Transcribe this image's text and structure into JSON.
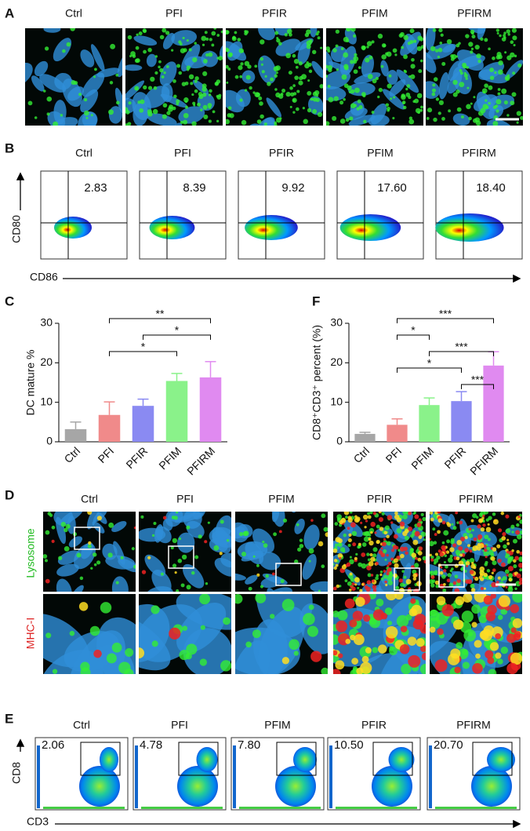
{
  "panel_a": {
    "label": "A",
    "titles": [
      "Ctrl",
      "PFI",
      "PFIR",
      "PFIM",
      "PFIRM"
    ]
  },
  "panel_b": {
    "label": "B",
    "titles": [
      "Ctrl",
      "PFI",
      "PFIR",
      "PFIM",
      "PFIRM"
    ],
    "percentages": [
      "2.83",
      "8.39",
      "9.92",
      "17.60",
      "18.40"
    ],
    "y_axis": "CD80",
    "x_axis": "CD86"
  },
  "chart_data": [
    {
      "type": "bar",
      "label": "C",
      "ylabel": "DC mature %",
      "categories": [
        "Ctrl",
        "PFI",
        "PFIR",
        "PFIM",
        "PFIRM"
      ],
      "values": [
        3.2,
        6.8,
        9.1,
        15.4,
        16.3
      ],
      "errors": [
        1.8,
        3.3,
        1.7,
        1.9,
        4.0
      ],
      "colors": [
        "#a6a6a6",
        "#f08a8a",
        "#8a8af2",
        "#8af28a",
        "#e08af0"
      ],
      "ylim": [
        0,
        30
      ],
      "yticks": [
        0,
        10,
        20,
        30
      ],
      "annotations": [
        {
          "text": "**",
          "from": "PFI",
          "to": "PFIRM"
        },
        {
          "text": "*",
          "from": "PFIR",
          "to": "PFIRM"
        },
        {
          "text": "*",
          "from": "PFI",
          "to": "PFIM"
        }
      ]
    },
    {
      "type": "bar",
      "label": "F",
      "ylabel": "CD8⁺CD3⁺ percent (%)",
      "categories": [
        "Ctrl",
        "PFI",
        "PFIM",
        "PFIR",
        "PFIRM"
      ],
      "values": [
        2.0,
        4.3,
        9.3,
        10.3,
        19.3
      ],
      "errors": [
        0.4,
        1.5,
        1.8,
        2.4,
        3.5
      ],
      "colors": [
        "#a6a6a6",
        "#f08a8a",
        "#8af28a",
        "#8a8af2",
        "#e08af0"
      ],
      "ylim": [
        0,
        30
      ],
      "yticks": [
        0,
        10,
        20,
        30
      ],
      "annotations": [
        {
          "text": "***",
          "from": "PFI",
          "to": "PFIRM"
        },
        {
          "text": "*",
          "from": "PFI",
          "to": "PFIM"
        },
        {
          "text": "***",
          "from": "PFIM",
          "to": "PFIRM"
        },
        {
          "text": "*",
          "from": "PFI",
          "to": "PFIR"
        },
        {
          "text": "***",
          "from": "PFIR",
          "to": "PFIRM"
        }
      ]
    }
  ],
  "panel_d": {
    "label": "D",
    "titles": [
      "Ctrl",
      "PFI",
      "PFIM",
      "PFIR",
      "PFIRM"
    ],
    "row_labels": [
      "Lysosome",
      "MHC-I"
    ]
  },
  "panel_e": {
    "label": "E",
    "titles": [
      "Ctrl",
      "PFI",
      "PFIM",
      "PFIR",
      "PFIRM"
    ],
    "percentages": [
      "2.06",
      "4.78",
      "7.80",
      "10.50",
      "20.70"
    ],
    "y_axis": "CD8",
    "x_axis": "CD3"
  }
}
